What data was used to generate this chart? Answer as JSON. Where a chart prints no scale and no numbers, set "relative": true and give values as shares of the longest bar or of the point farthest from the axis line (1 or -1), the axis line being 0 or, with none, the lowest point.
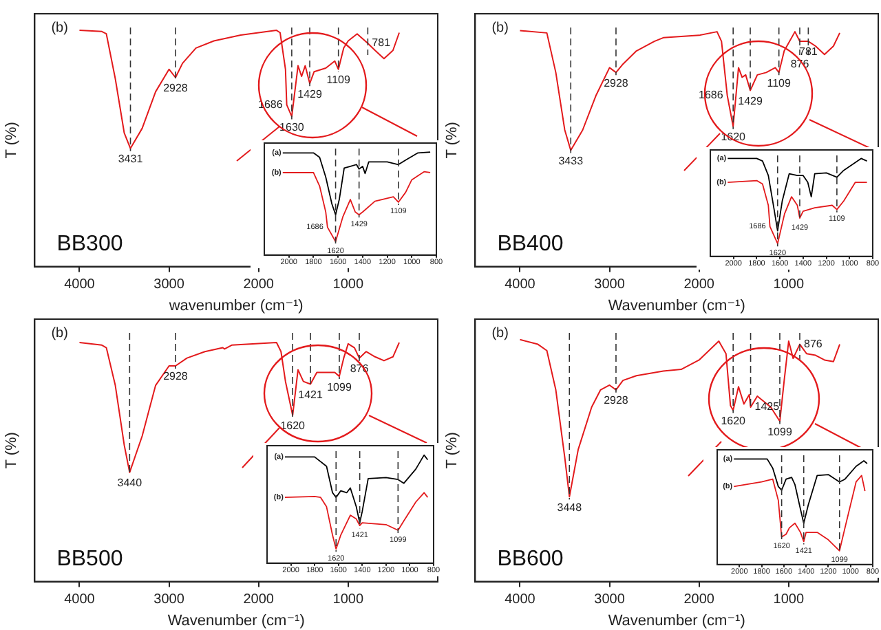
{
  "chart_data": [
    {
      "type": "line",
      "relative": true,
      "xlabel": "wavenumber (cm⁻¹)",
      "ylabel": "T (%)",
      "xlim": [
        4500,
        0
      ],
      "xticks": [
        4000,
        3000,
        2000,
        1000
      ],
      "x": [
        4000,
        3750,
        3700,
        3600,
        3500,
        3431,
        3300,
        3150,
        3000,
        2928,
        2850,
        2700,
        2500,
        2200,
        1800,
        1760,
        1700,
        1686,
        1630,
        1560,
        1520,
        1480,
        1429,
        1380,
        1250,
        1150,
        1109,
        1050,
        1000,
        900,
        781,
        700,
        600,
        500,
        430
      ],
      "color": "#e31a1c",
      "values": [
        1.0,
        0.99,
        0.97,
        0.59,
        0.13,
        0,
        0.17,
        0.48,
        0.67,
        0.6,
        0.72,
        0.85,
        0.91,
        0.96,
        1.0,
        0.98,
        0.67,
        0.37,
        0.27,
        0.7,
        0.61,
        0.7,
        0.55,
        0.65,
        0.68,
        0.74,
        0.67,
        0.85,
        0.91,
        0.97,
        0.89,
        0.83,
        0.76,
        0.83,
        0.98
      ],
      "ref_lines": [
        {
          "axis": "x",
          "value": 3431,
          "color": "#333333",
          "line_style": "dashed"
        },
        {
          "axis": "x",
          "value": 2928,
          "color": "#333333",
          "line_style": "dashed"
        },
        {
          "axis": "x",
          "value": 1630,
          "color": "#333333",
          "line_style": "dashed"
        },
        {
          "axis": "x",
          "value": 1429,
          "color": "#333333",
          "line_style": "dashed"
        },
        {
          "axis": "x",
          "value": 1109,
          "color": "#333333",
          "line_style": "dashed"
        },
        {
          "axis": "x",
          "value": 781,
          "color": "#333333",
          "line_style": "dashed"
        }
      ],
      "annotations": [
        "(b)",
        "BB300",
        {
          "text": "3431",
          "x": 3431,
          "y": 0
        },
        {
          "text": "2928",
          "x": 2928,
          "y": 0.6
        },
        {
          "text": "1686",
          "x": 1686,
          "y": 0.37
        },
        {
          "text": "1630",
          "x": 1630,
          "y": 0.27
        },
        {
          "text": "1429",
          "x": 1429,
          "y": 0.55
        },
        {
          "text": "1109",
          "x": 1109,
          "y": 0.67
        },
        {
          "text": "781",
          "x": 781,
          "y": 0.89
        }
      ]
    },
    {
      "type": "line",
      "relative": true,
      "xlabel": "Wavenumber (cm⁻¹)",
      "ylabel": "T (%)",
      "xlim": [
        4500,
        0
      ],
      "xticks": [
        4000,
        3000,
        2000,
        1000
      ],
      "x": [
        4000,
        3700,
        3600,
        3500,
        3433,
        3300,
        3150,
        3000,
        2928,
        2850,
        2700,
        2500,
        2400,
        2000,
        1800,
        1750,
        1686,
        1620,
        1560,
        1520,
        1480,
        1429,
        1350,
        1250,
        1150,
        1109,
        1050,
        930,
        876,
        781,
        700,
        600,
        500,
        430
      ],
      "color": "#e31a1c",
      "values": [
        1.0,
        0.98,
        0.65,
        0.17,
        0,
        0.17,
        0.46,
        0.69,
        0.65,
        0.72,
        0.83,
        0.91,
        0.94,
        0.96,
        0.99,
        0.91,
        0.46,
        0.2,
        0.69,
        0.61,
        0.63,
        0.5,
        0.63,
        0.65,
        0.69,
        0.65,
        0.83,
        0.99,
        0.91,
        0.91,
        0.87,
        0.8,
        0.87,
        0.98
      ],
      "ref_lines": [
        {
          "axis": "x",
          "value": 3433,
          "color": "#333333",
          "line_style": "dashed"
        },
        {
          "axis": "x",
          "value": 2928,
          "color": "#333333",
          "line_style": "dashed"
        },
        {
          "axis": "x",
          "value": 1620,
          "color": "#333333",
          "line_style": "dashed"
        },
        {
          "axis": "x",
          "value": 1429,
          "color": "#333333",
          "line_style": "dashed"
        },
        {
          "axis": "x",
          "value": 1109,
          "color": "#333333",
          "line_style": "dashed"
        },
        {
          "axis": "x",
          "value": 876,
          "color": "#333333",
          "line_style": "dashed"
        },
        {
          "axis": "x",
          "value": 781,
          "color": "#333333",
          "line_style": "dashed"
        }
      ],
      "annotations": [
        "(b)",
        "BB400",
        {
          "text": "3433",
          "x": 3433,
          "y": 0
        },
        {
          "text": "2928",
          "x": 2928,
          "y": 0.65
        },
        {
          "text": "1686",
          "x": 1686,
          "y": 0.46
        },
        {
          "text": "1620",
          "x": 1620,
          "y": 0.2
        },
        {
          "text": "1429",
          "x": 1429,
          "y": 0.5
        },
        {
          "text": "1109",
          "x": 1109,
          "y": 0.65
        },
        {
          "text": "876",
          "x": 876,
          "y": 0.91
        },
        {
          "text": "781",
          "x": 781,
          "y": 0.91
        }
      ]
    },
    {
      "type": "line",
      "relative": true,
      "xlabel": "Wavenumber (cm⁻¹)",
      "ylabel": "T (%)",
      "xlim": [
        4500,
        0
      ],
      "xticks": [
        4000,
        3000,
        2000,
        1000
      ],
      "x": [
        4000,
        3750,
        3700,
        3600,
        3500,
        3440,
        3300,
        3150,
        3000,
        2928,
        2800,
        2600,
        2400,
        2380,
        2300,
        1800,
        1750,
        1700,
        1620,
        1560,
        1500,
        1421,
        1350,
        1150,
        1099,
        1050,
        1000,
        930,
        876,
        800,
        700,
        600,
        500,
        430
      ],
      "color": "#e31a1c",
      "values": [
        1.0,
        0.98,
        0.96,
        0.67,
        0.21,
        0,
        0.28,
        0.67,
        0.82,
        0.82,
        0.88,
        0.93,
        0.96,
        0.95,
        0.98,
        1.0,
        0.93,
        0.7,
        0.44,
        0.79,
        0.7,
        0.68,
        0.77,
        0.77,
        0.74,
        0.88,
        0.99,
        0.96,
        0.88,
        0.93,
        0.89,
        0.86,
        0.89,
        1.0
      ],
      "ref_lines": [
        {
          "axis": "x",
          "value": 3440,
          "color": "#333333",
          "line_style": "dashed"
        },
        {
          "axis": "x",
          "value": 2928,
          "color": "#333333",
          "line_style": "dashed"
        },
        {
          "axis": "x",
          "value": 1620,
          "color": "#333333",
          "line_style": "dashed"
        },
        {
          "axis": "x",
          "value": 1421,
          "color": "#333333",
          "line_style": "dashed"
        },
        {
          "axis": "x",
          "value": 1099,
          "color": "#333333",
          "line_style": "dashed"
        },
        {
          "axis": "x",
          "value": 876,
          "color": "#333333",
          "line_style": "dashed"
        }
      ],
      "annotations": [
        "(b)",
        "BB500",
        {
          "text": "3440",
          "x": 3440,
          "y": 0
        },
        {
          "text": "2928",
          "x": 2928,
          "y": 0.82
        },
        {
          "text": "1620",
          "x": 1620,
          "y": 0.44
        },
        {
          "text": "1421",
          "x": 1421,
          "y": 0.68
        },
        {
          "text": "1099",
          "x": 1099,
          "y": 0.74
        },
        {
          "text": "876",
          "x": 876,
          "y": 0.88
        }
      ]
    },
    {
      "type": "line",
      "relative": true,
      "xlabel": "Wavenumber (cm⁻¹)",
      "ylabel": "T (%)",
      "xlim": [
        4500,
        0
      ],
      "xticks": [
        4000,
        3000,
        2000,
        1000
      ],
      "x": [
        4000,
        3800,
        3700,
        3600,
        3500,
        3448,
        3350,
        3200,
        3100,
        3000,
        2928,
        2850,
        2700,
        2400,
        2200,
        2000,
        1780,
        1700,
        1650,
        1620,
        1560,
        1500,
        1440,
        1425,
        1350,
        1200,
        1099,
        1050,
        1000,
        950,
        876,
        800,
        700,
        600,
        500,
        430
      ],
      "color": "#e31a1c",
      "values": [
        1.0,
        0.97,
        0.93,
        0.68,
        0.25,
        0,
        0.3,
        0.57,
        0.68,
        0.71,
        0.68,
        0.74,
        0.77,
        0.8,
        0.81,
        0.87,
        0.99,
        0.91,
        0.58,
        0.55,
        0.7,
        0.59,
        0.65,
        0.57,
        0.64,
        0.57,
        0.48,
        0.74,
        0.99,
        0.88,
        0.97,
        0.91,
        0.9,
        0.87,
        0.86,
        0.97
      ],
      "ref_lines": [
        {
          "axis": "x",
          "value": 3448,
          "color": "#333333",
          "line_style": "dashed"
        },
        {
          "axis": "x",
          "value": 2928,
          "color": "#333333",
          "line_style": "dashed"
        },
        {
          "axis": "x",
          "value": 1620,
          "color": "#333333",
          "line_style": "dashed"
        },
        {
          "axis": "x",
          "value": 1425,
          "color": "#333333",
          "line_style": "dashed"
        },
        {
          "axis": "x",
          "value": 1099,
          "color": "#333333",
          "line_style": "dashed"
        },
        {
          "axis": "x",
          "value": 876,
          "color": "#333333",
          "line_style": "dashed"
        }
      ],
      "annotations": [
        "(b)",
        "BB600",
        {
          "text": "3448",
          "x": 3448,
          "y": 0
        },
        {
          "text": "2928",
          "x": 2928,
          "y": 0.68
        },
        {
          "text": "1620",
          "x": 1620,
          "y": 0.55
        },
        {
          "text": "1425",
          "x": 1425,
          "y": 0.57
        },
        {
          "text": "1099",
          "x": 1099,
          "y": 0.48
        },
        {
          "text": "876",
          "x": 876,
          "y": 0.97
        }
      ]
    },
    {
      "type": "line",
      "relative": true,
      "xlim": [
        2200,
        800
      ],
      "xticks": [
        2000,
        1800,
        1600,
        1400,
        1200,
        1000,
        800
      ],
      "series": [
        {
          "name": "(a)",
          "color": "#000000",
          "x": [
            2050,
            1800,
            1750,
            1700,
            1650,
            1620,
            1590,
            1550,
            1500,
            1450,
            1429,
            1400,
            1380,
            1350,
            1300,
            1200,
            1109,
            1050,
            950,
            850
          ],
          "values": [
            0.99,
            0.99,
            0.94,
            0.72,
            0.42,
            0.3,
            0.47,
            0.82,
            0.84,
            0.86,
            0.81,
            0.84,
            0.76,
            0.89,
            0.89,
            0.89,
            0.86,
            0.91,
            0.99,
            1.0
          ]
        },
        {
          "name": "(b)",
          "color": "#e31a1c",
          "x": [
            2050,
            1800,
            1750,
            1700,
            1686,
            1620,
            1560,
            1500,
            1460,
            1429,
            1400,
            1300,
            1150,
            1109,
            1050,
            1000,
            900,
            850
          ],
          "values": [
            0.77,
            0.77,
            0.62,
            0.33,
            0.16,
            0,
            0.28,
            0.47,
            0.33,
            0.3,
            0.33,
            0.45,
            0.5,
            0.44,
            0.55,
            0.69,
            0.78,
            0.77
          ]
        }
      ],
      "ref_lines": [
        {
          "axis": "x",
          "value": 1620,
          "color": "#333333",
          "line_style": "dashed"
        },
        {
          "axis": "x",
          "value": 1429,
          "color": "#333333",
          "line_style": "dashed"
        },
        {
          "axis": "x",
          "value": 1109,
          "color": "#333333",
          "line_style": "dashed"
        }
      ],
      "annotations": [
        {
          "text": "1686",
          "x": 1686,
          "y": 0.16
        },
        {
          "text": "1620",
          "x": 1620,
          "y": 0
        },
        {
          "text": "1429",
          "x": 1429,
          "y": 0.3
        },
        {
          "text": "1109",
          "x": 1109,
          "y": 0.44
        }
      ]
    },
    {
      "type": "line",
      "relative": true,
      "xlim": [
        2200,
        800
      ],
      "xticks": [
        2000,
        1800,
        1600,
        1400,
        1200,
        1000,
        800
      ],
      "series": [
        {
          "name": "(a)",
          "color": "#000000",
          "x": [
            2050,
            1800,
            1750,
            1700,
            1650,
            1620,
            1580,
            1520,
            1450,
            1400,
            1360,
            1330,
            1300,
            1200,
            1109,
            1050,
            900,
            850
          ],
          "values": [
            1.0,
            1.0,
            0.97,
            0.8,
            0.4,
            0.15,
            0.5,
            0.82,
            0.8,
            0.8,
            0.72,
            0.55,
            0.82,
            0.83,
            0.78,
            0.86,
            1.0,
            0.97
          ]
        },
        {
          "name": "(b)",
          "color": "#e31a1c",
          "x": [
            2050,
            1800,
            1750,
            1700,
            1686,
            1620,
            1560,
            1500,
            1450,
            1429,
            1400,
            1300,
            1150,
            1109,
            1050,
            950,
            850
          ],
          "values": [
            0.72,
            0.74,
            0.7,
            0.45,
            0.2,
            0,
            0.35,
            0.55,
            0.45,
            0.3,
            0.38,
            0.42,
            0.45,
            0.4,
            0.5,
            0.72,
            0.72
          ]
        }
      ],
      "ref_lines": [
        {
          "axis": "x",
          "value": 1620,
          "color": "#333333",
          "line_style": "dashed"
        },
        {
          "axis": "x",
          "value": 1429,
          "color": "#333333",
          "line_style": "dashed"
        },
        {
          "axis": "x",
          "value": 1109,
          "color": "#333333",
          "line_style": "dashed"
        }
      ],
      "annotations": [
        {
          "text": "1686",
          "x": 1686,
          "y": 0.2
        },
        {
          "text": "1620",
          "x": 1620,
          "y": 0
        },
        {
          "text": "1429",
          "x": 1429,
          "y": 0.3
        },
        {
          "text": "1109",
          "x": 1109,
          "y": 0.4
        }
      ]
    },
    {
      "type": "line",
      "relative": true,
      "xlim": [
        2200,
        800
      ],
      "xticks": [
        2000,
        1800,
        1600,
        1400,
        1200,
        1000,
        800
      ],
      "series": [
        {
          "name": "(a)",
          "color": "#000000",
          "x": [
            2050,
            1800,
            1700,
            1650,
            1620,
            1580,
            1530,
            1500,
            1450,
            1421,
            1400,
            1350,
            1200,
            1099,
            1050,
            950,
            880,
            850
          ],
          "values": [
            0.98,
            0.98,
            0.88,
            0.6,
            0.55,
            0.62,
            0.6,
            0.65,
            0.45,
            0.28,
            0.4,
            0.75,
            0.76,
            0.74,
            0.7,
            0.85,
            1.0,
            0.95
          ]
        },
        {
          "name": "(b)",
          "color": "#e31a1c",
          "x": [
            2050,
            1800,
            1750,
            1700,
            1650,
            1620,
            1580,
            1500,
            1450,
            1421,
            1400,
            1200,
            1099,
            1050,
            950,
            880,
            850
          ],
          "values": [
            0.55,
            0.56,
            0.55,
            0.45,
            0.15,
            0,
            0.15,
            0.36,
            0.32,
            0.25,
            0.28,
            0.26,
            0.2,
            0.3,
            0.5,
            0.6,
            0.55
          ]
        }
      ],
      "ref_lines": [
        {
          "axis": "x",
          "value": 1620,
          "color": "#333333",
          "line_style": "dashed"
        },
        {
          "axis": "x",
          "value": 1421,
          "color": "#333333",
          "line_style": "dashed"
        },
        {
          "axis": "x",
          "value": 1099,
          "color": "#333333",
          "line_style": "dashed"
        }
      ],
      "annotations": [
        {
          "text": "1620",
          "x": 1620,
          "y": 0
        },
        {
          "text": "1421",
          "x": 1421,
          "y": 0.25
        },
        {
          "text": "1099",
          "x": 1099,
          "y": 0.2
        }
      ]
    },
    {
      "type": "line",
      "relative": true,
      "xlim": [
        2200,
        800
      ],
      "xticks": [
        2000,
        1800,
        1600,
        1400,
        1200,
        1000,
        800
      ],
      "series": [
        {
          "name": "(a)",
          "color": "#000000",
          "x": [
            2050,
            1750,
            1700,
            1650,
            1620,
            1580,
            1530,
            1500,
            1450,
            1421,
            1380,
            1300,
            1200,
            1099,
            1050,
            950,
            880,
            850
          ],
          "values": [
            1.0,
            1.0,
            0.9,
            0.7,
            0.66,
            0.78,
            0.8,
            0.72,
            0.45,
            0.3,
            0.5,
            0.82,
            0.83,
            0.75,
            0.78,
            0.92,
            0.98,
            0.95
          ]
        },
        {
          "name": "(b)",
          "color": "#e31a1c",
          "x": [
            2050,
            1800,
            1700,
            1650,
            1620,
            1580,
            1550,
            1500,
            1450,
            1421,
            1400,
            1300,
            1200,
            1099,
            1050,
            950,
            900,
            870
          ],
          "values": [
            0.7,
            0.75,
            0.78,
            0.55,
            0.15,
            0.18,
            0.25,
            0.3,
            0.2,
            0.1,
            0.2,
            0.2,
            0.12,
            0,
            0.25,
            0.75,
            0.82,
            0.65
          ]
        }
      ],
      "ref_lines": [
        {
          "axis": "x",
          "value": 1620,
          "color": "#333333",
          "line_style": "dashed"
        },
        {
          "axis": "x",
          "value": 1421,
          "color": "#333333",
          "line_style": "dashed"
        },
        {
          "axis": "x",
          "value": 1099,
          "color": "#333333",
          "line_style": "dashed"
        }
      ],
      "annotations": [
        {
          "text": "1620",
          "x": 1620,
          "y": 0.15
        },
        {
          "text": "1421",
          "x": 1421,
          "y": 0.1
        },
        {
          "text": "1099",
          "x": 1099,
          "y": 0
        }
      ]
    }
  ]
}
